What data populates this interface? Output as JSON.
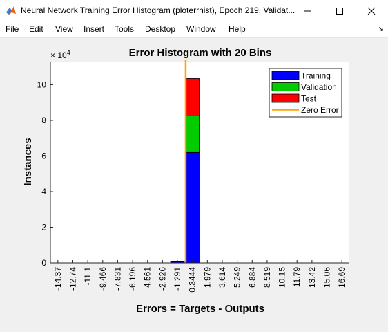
{
  "window": {
    "title": "Neural Network Training Error Histogram (ploterrhist), Epoch 219, Validat...",
    "app_icon": "matlab-icon",
    "controls": [
      "minimize-icon",
      "maximize-icon",
      "close-icon"
    ]
  },
  "menu": {
    "items": [
      "File",
      "Edit",
      "View",
      "Insert",
      "Tools",
      "Desktop",
      "Window",
      "Help"
    ],
    "dock_icon": "dock-arrow-icon"
  },
  "chart_data": {
    "type": "bar",
    "stacked": true,
    "title": "Error Histogram with 20 Bins",
    "xlabel": "Errors = Targets - Outputs",
    "ylabel": "Instances",
    "y_exponent_label": "× 10",
    "y_exponent_power": "4",
    "ylim": [
      0,
      11.3
    ],
    "yticks": [
      "0",
      "2",
      "4",
      "6",
      "8",
      "10"
    ],
    "categories": [
      "-14.37",
      "-12.74",
      "-11.1",
      "-9.466",
      "-7.831",
      "-6.196",
      "-4.561",
      "-2.926",
      "-1.291",
      "0.3444",
      "1.979",
      "3.614",
      "5.249",
      "6.884",
      "8.519",
      "10.15",
      "11.79",
      "13.42",
      "15.06",
      "16.69"
    ],
    "series": [
      {
        "name": "Training",
        "color": "#0000ff",
        "values": [
          0,
          0,
          0,
          0,
          0,
          0,
          0,
          0,
          0.07,
          6.2,
          0,
          0,
          0,
          0,
          0,
          0,
          0,
          0,
          0,
          0
        ]
      },
      {
        "name": "Validation",
        "color": "#00cc00",
        "values": [
          0,
          0,
          0,
          0,
          0,
          0,
          0,
          0,
          0.01,
          2.05,
          0,
          0,
          0,
          0,
          0,
          0,
          0,
          0,
          0,
          0
        ]
      },
      {
        "name": "Test",
        "color": "#ff0000",
        "values": [
          0,
          0,
          0,
          0,
          0,
          0,
          0,
          0,
          0.01,
          2.1,
          0,
          0,
          0,
          0,
          0,
          0,
          0,
          0,
          0,
          0
        ]
      }
    ],
    "zero_error": {
      "name": "Zero Error",
      "color": "#ffa500",
      "x_bin_position": 9.05
    },
    "legend_position": "top-right",
    "grid": false
  }
}
